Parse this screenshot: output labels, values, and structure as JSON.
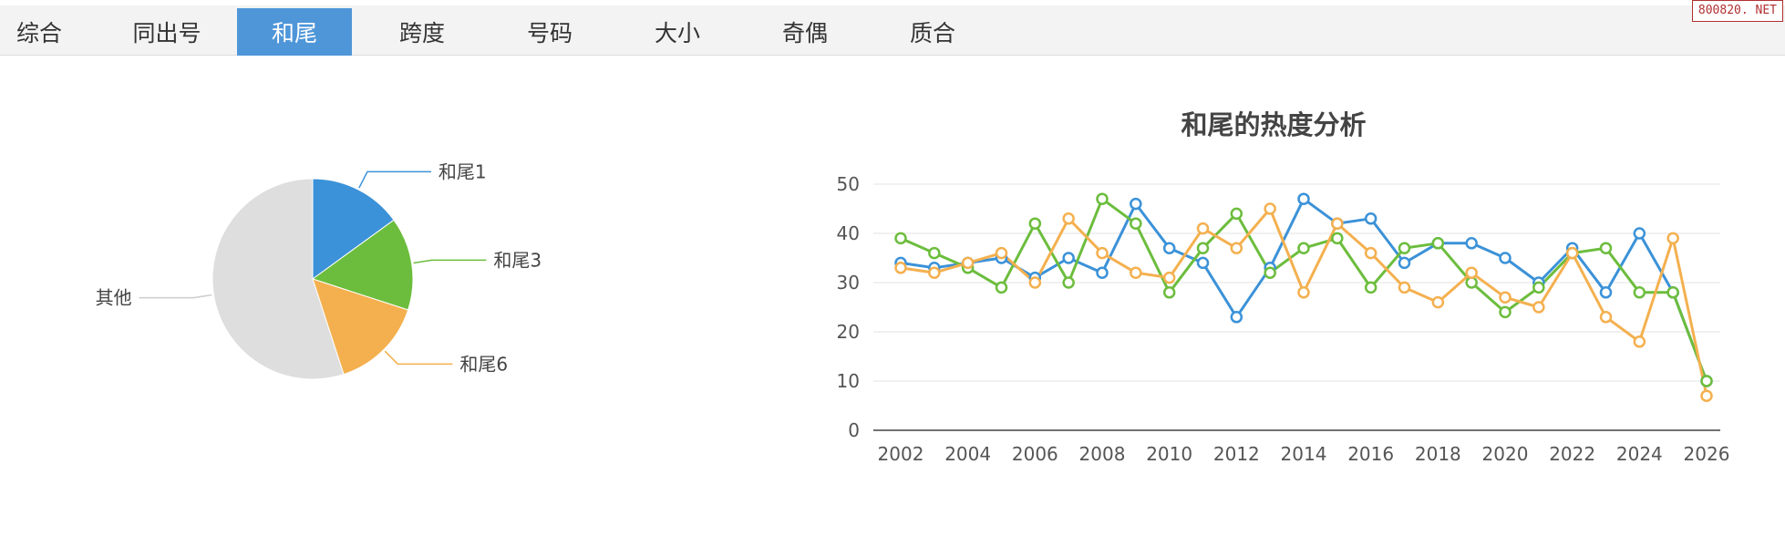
{
  "tabs": [
    {
      "label": "综合",
      "active": false
    },
    {
      "label": "同出号",
      "active": false
    },
    {
      "label": "和尾",
      "active": true
    },
    {
      "label": "跨度",
      "active": false
    },
    {
      "label": "号码",
      "active": false
    },
    {
      "label": "大小",
      "active": false
    },
    {
      "label": "奇偶",
      "active": false
    },
    {
      "label": "质合",
      "active": false
    }
  ],
  "watermark": "800820. NET",
  "colors": {
    "blue": "#3b92d8",
    "green": "#6cbd3d",
    "orange": "#f4b04f",
    "gray": "#dedede",
    "active_tab": "#4f96d9"
  },
  "chart_data": [
    {
      "type": "pie",
      "title": "",
      "slices": [
        {
          "label": "和尾1",
          "value": 15,
          "color": "#3b92d8"
        },
        {
          "label": "和尾3",
          "value": 15,
          "color": "#6cbd3d"
        },
        {
          "label": "和尾6",
          "value": 15,
          "color": "#f4b04f"
        },
        {
          "label": "其他",
          "value": 55,
          "color": "#dedede"
        }
      ]
    },
    {
      "type": "line",
      "title": "和尾的热度分析",
      "xlabel": "",
      "ylabel": "",
      "ylim": [
        0,
        50
      ],
      "yticks": [
        0,
        10,
        20,
        30,
        40,
        50
      ],
      "xticks": [
        2002,
        2004,
        2006,
        2008,
        2010,
        2012,
        2014,
        2016,
        2018,
        2020,
        2022,
        2024,
        2026
      ],
      "grid": true,
      "x": [
        2002,
        2003,
        2004,
        2005,
        2006,
        2007,
        2008,
        2009,
        2010,
        2011,
        2012,
        2013,
        2014,
        2015,
        2016,
        2017,
        2018,
        2019,
        2020,
        2021,
        2022,
        2023,
        2024,
        2025,
        2026
      ],
      "series": [
        {
          "color": "#3b92d8",
          "values": [
            34,
            33,
            34,
            35,
            31,
            35,
            32,
            46,
            37,
            34,
            23,
            33,
            47,
            42,
            43,
            34,
            38,
            38,
            35,
            30,
            37,
            28,
            40,
            28,
            10
          ]
        },
        {
          "color": "#6cbd3d",
          "values": [
            39,
            36,
            33,
            29,
            42,
            30,
            47,
            42,
            28,
            37,
            44,
            32,
            37,
            39,
            29,
            37,
            38,
            30,
            24,
            29,
            36,
            37,
            28,
            28,
            10
          ]
        },
        {
          "color": "#f4b04f",
          "values": [
            33,
            32,
            34,
            36,
            30,
            43,
            36,
            32,
            31,
            41,
            37,
            45,
            28,
            42,
            36,
            29,
            26,
            32,
            27,
            25,
            36,
            23,
            18,
            39,
            7
          ]
        }
      ]
    }
  ]
}
